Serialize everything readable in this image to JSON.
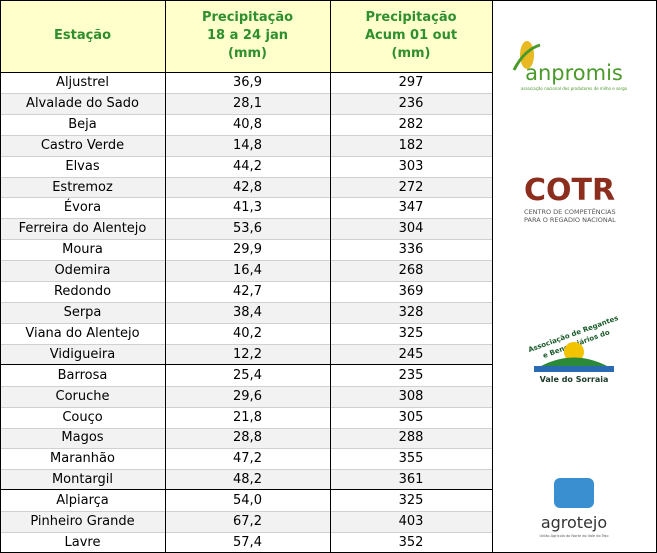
{
  "table": {
    "header": [
      [
        "Estação"
      ],
      [
        "Precipitação",
        "18 a 24 jan",
        "(mm)"
      ],
      [
        "Precipitação",
        "Acum 01 out",
        "(mm)"
      ]
    ],
    "groups": [
      [
        [
          "Aljustrel",
          "36,9",
          "297"
        ],
        [
          "Alvalade do Sado",
          "28,1",
          "236"
        ],
        [
          "Beja",
          "40,8",
          "282"
        ],
        [
          "Castro Verde",
          "14,8",
          "182"
        ],
        [
          "Elvas",
          "44,2",
          "303"
        ],
        [
          "Estremoz",
          "42,8",
          "272"
        ],
        [
          "Évora",
          "41,3",
          "347"
        ],
        [
          "Ferreira do Alentejo",
          "53,6",
          "304"
        ],
        [
          "Moura",
          "29,9",
          "336"
        ],
        [
          "Odemira",
          "16,4",
          "268"
        ],
        [
          "Redondo",
          "42,7",
          "369"
        ],
        [
          "Serpa",
          "38,4",
          "328"
        ],
        [
          "Viana do Alentejo",
          "40,2",
          "325"
        ],
        [
          "Vidigueira",
          "12,2",
          "245"
        ]
      ],
      [
        [
          "Barrosa",
          "25,4",
          "235"
        ],
        [
          "Coruche",
          "29,6",
          "308"
        ],
        [
          "Couço",
          "21,8",
          "305"
        ],
        [
          "Magos",
          "28,8",
          "288"
        ],
        [
          "Maranhão",
          "47,2",
          "355"
        ],
        [
          "Montargil",
          "48,2",
          "361"
        ]
      ],
      [
        [
          "Alpiarça",
          "54,0",
          "325"
        ],
        [
          "Pinheiro Grande",
          "67,2",
          "403"
        ],
        [
          "Lavre",
          "57,4",
          "352"
        ]
      ]
    ]
  },
  "logos": {
    "anpromis": {
      "name": "anpromis",
      "tagline": "associação nacional dos produtores de milho e sorgo"
    },
    "cotr": {
      "name": "COTR",
      "line1": "CENTRO DE COMPETÊNCIAS",
      "line2": "PARA O REGADIO NACIONAL"
    },
    "sorraia": {
      "line1": "Associação de Regantes",
      "line2": "e Beneficiários do",
      "line3": "Vale do Sorraia"
    },
    "agrotejo": {
      "name": "agrotejo",
      "tagline": "União Agrícola do Norte do Vale do Tejo"
    }
  }
}
